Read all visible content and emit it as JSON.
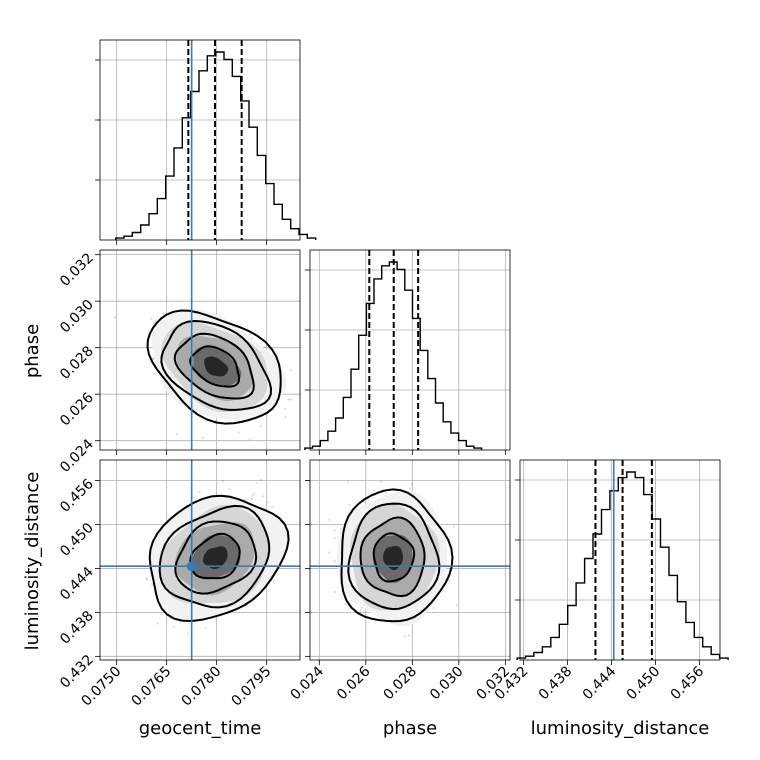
{
  "chart_data": {
    "type": "corner",
    "parameters": [
      "geocent_time",
      "phase",
      "luminosity_distance"
    ],
    "axis_labels": {
      "x": [
        "geocent_time",
        "phase",
        "luminosity_distance"
      ],
      "y": [
        "",
        "phase",
        "luminosity_distance"
      ]
    },
    "ranges": {
      "geocent_time": [
        0.0745,
        0.0805
      ],
      "phase": [
        0.0236,
        0.0322
      ],
      "luminosity_distance": [
        0.4315,
        0.4588
      ]
    },
    "ticks": {
      "geocent_time": [
        "0.0750",
        "0.0765",
        "0.0780",
        "0.0795"
      ],
      "phase": [
        "0.024",
        "0.026",
        "0.028",
        "0.030",
        "0.032"
      ],
      "luminosity_distance": [
        "0.432",
        "0.438",
        "0.444",
        "0.450",
        "0.456"
      ]
    },
    "truths": {
      "geocent_time": 0.07725,
      "phase": null,
      "luminosity_distance": 0.4443
    },
    "posterior_means": {
      "geocent_time": 0.07797,
      "phase": 0.02718,
      "luminosity_distance": 0.4455
    },
    "posterior_sigmas": {
      "geocent_time": 0.00075,
      "phase": 0.00095,
      "luminosity_distance": 0.0036
    },
    "quantiles_16_50_84": {
      "geocent_time": [
        0.07715,
        0.07795,
        0.07875
      ],
      "phase": [
        0.02615,
        0.0272,
        0.02825
      ],
      "luminosity_distance": [
        0.4418,
        0.4455,
        0.4495
      ]
    },
    "histograms": {
      "geocent_time": [
        1,
        2,
        4,
        8,
        14,
        22,
        34,
        49,
        65,
        79,
        90,
        98,
        100,
        96,
        87,
        74,
        60,
        45,
        30,
        19,
        11,
        6,
        3,
        1
      ],
      "phase": [
        1,
        2,
        5,
        10,
        17,
        28,
        43,
        61,
        78,
        91,
        98,
        100,
        96,
        85,
        70,
        53,
        38,
        25,
        15,
        9,
        5,
        2,
        1
      ],
      "luminosity_distance": [
        1,
        2,
        4,
        7,
        12,
        19,
        29,
        41,
        54,
        67,
        80,
        90,
        97,
        100,
        97,
        88,
        75,
        60,
        45,
        31,
        20,
        12,
        7,
        3,
        1
      ]
    },
    "correlations": {
      "geocent_time|phase": -0.45,
      "geocent_time|luminosity_distance": 0.45,
      "phase|luminosity_distance": 0.0
    },
    "grid": true
  }
}
